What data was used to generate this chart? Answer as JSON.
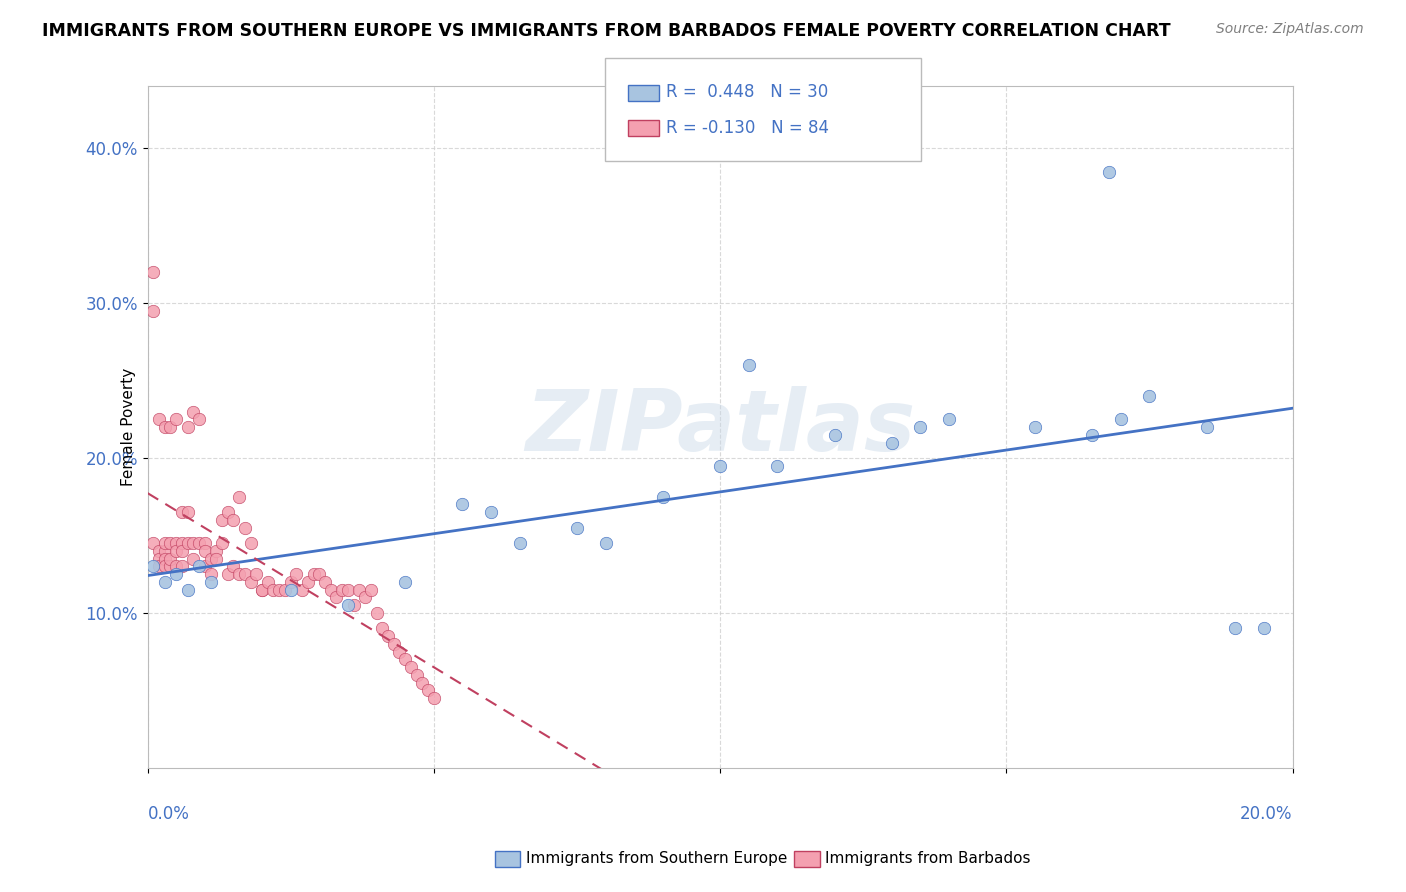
{
  "title": "IMMIGRANTS FROM SOUTHERN EUROPE VS IMMIGRANTS FROM BARBADOS FEMALE POVERTY CORRELATION CHART",
  "source": "Source: ZipAtlas.com",
  "legend_blue_r": "R =  0.448",
  "legend_blue_n": "N = 30",
  "legend_pink_r": "R = -0.130",
  "legend_pink_n": "N = 84",
  "legend_label_blue": "Immigrants from Southern Europe",
  "legend_label_pink": "Immigrants from Barbados",
  "blue_color": "#a8c4e0",
  "pink_color": "#f4a0b0",
  "blue_line_color": "#4472c4",
  "text_blue": "#4472c4",
  "text_pink": "#c04060",
  "blue_x": [
    0.001,
    0.003,
    0.005,
    0.007,
    0.009,
    0.011,
    0.025,
    0.035,
    0.045,
    0.055,
    0.065,
    0.075,
    0.09,
    0.1,
    0.11,
    0.12,
    0.13,
    0.14,
    0.155,
    0.165,
    0.17,
    0.175,
    0.185,
    0.19,
    0.195,
    0.06,
    0.08,
    0.105,
    0.135,
    0.168
  ],
  "blue_y": [
    0.13,
    0.12,
    0.125,
    0.115,
    0.13,
    0.12,
    0.115,
    0.105,
    0.12,
    0.17,
    0.145,
    0.155,
    0.175,
    0.195,
    0.195,
    0.215,
    0.21,
    0.225,
    0.22,
    0.215,
    0.225,
    0.24,
    0.22,
    0.09,
    0.09,
    0.165,
    0.145,
    0.26,
    0.22,
    0.385
  ],
  "pink_x": [
    0.001,
    0.001,
    0.001,
    0.002,
    0.002,
    0.002,
    0.002,
    0.003,
    0.003,
    0.003,
    0.003,
    0.003,
    0.004,
    0.004,
    0.004,
    0.004,
    0.005,
    0.005,
    0.005,
    0.005,
    0.006,
    0.006,
    0.006,
    0.006,
    0.007,
    0.007,
    0.007,
    0.008,
    0.008,
    0.008,
    0.009,
    0.009,
    0.01,
    0.01,
    0.01,
    0.011,
    0.011,
    0.012,
    0.012,
    0.013,
    0.013,
    0.014,
    0.014,
    0.015,
    0.015,
    0.016,
    0.016,
    0.017,
    0.017,
    0.018,
    0.018,
    0.019,
    0.02,
    0.02,
    0.021,
    0.022,
    0.023,
    0.024,
    0.025,
    0.026,
    0.027,
    0.028,
    0.029,
    0.03,
    0.031,
    0.032,
    0.033,
    0.034,
    0.035,
    0.036,
    0.037,
    0.038,
    0.039,
    0.04,
    0.041,
    0.042,
    0.043,
    0.044,
    0.045,
    0.046,
    0.047,
    0.048,
    0.049,
    0.05
  ],
  "pink_y": [
    0.145,
    0.32,
    0.295,
    0.14,
    0.135,
    0.13,
    0.225,
    0.14,
    0.145,
    0.135,
    0.13,
    0.22,
    0.145,
    0.22,
    0.13,
    0.135,
    0.145,
    0.14,
    0.13,
    0.225,
    0.145,
    0.14,
    0.13,
    0.165,
    0.145,
    0.22,
    0.165,
    0.23,
    0.135,
    0.145,
    0.225,
    0.145,
    0.145,
    0.14,
    0.13,
    0.135,
    0.125,
    0.14,
    0.135,
    0.16,
    0.145,
    0.165,
    0.125,
    0.16,
    0.13,
    0.175,
    0.125,
    0.155,
    0.125,
    0.145,
    0.12,
    0.125,
    0.115,
    0.115,
    0.12,
    0.115,
    0.115,
    0.115,
    0.12,
    0.125,
    0.115,
    0.12,
    0.125,
    0.125,
    0.12,
    0.115,
    0.11,
    0.115,
    0.115,
    0.105,
    0.115,
    0.11,
    0.115,
    0.1,
    0.09,
    0.085,
    0.08,
    0.075,
    0.07,
    0.065,
    0.06,
    0.055,
    0.05,
    0.045
  ],
  "xlim": [
    0,
    0.2
  ],
  "ylim": [
    0,
    0.44
  ],
  "background_color": "#ffffff",
  "grid_color": "#d0d0d0",
  "watermark": "ZIPatlas",
  "watermark_color": "#c8d8e8",
  "watermark_alpha": 0.45
}
